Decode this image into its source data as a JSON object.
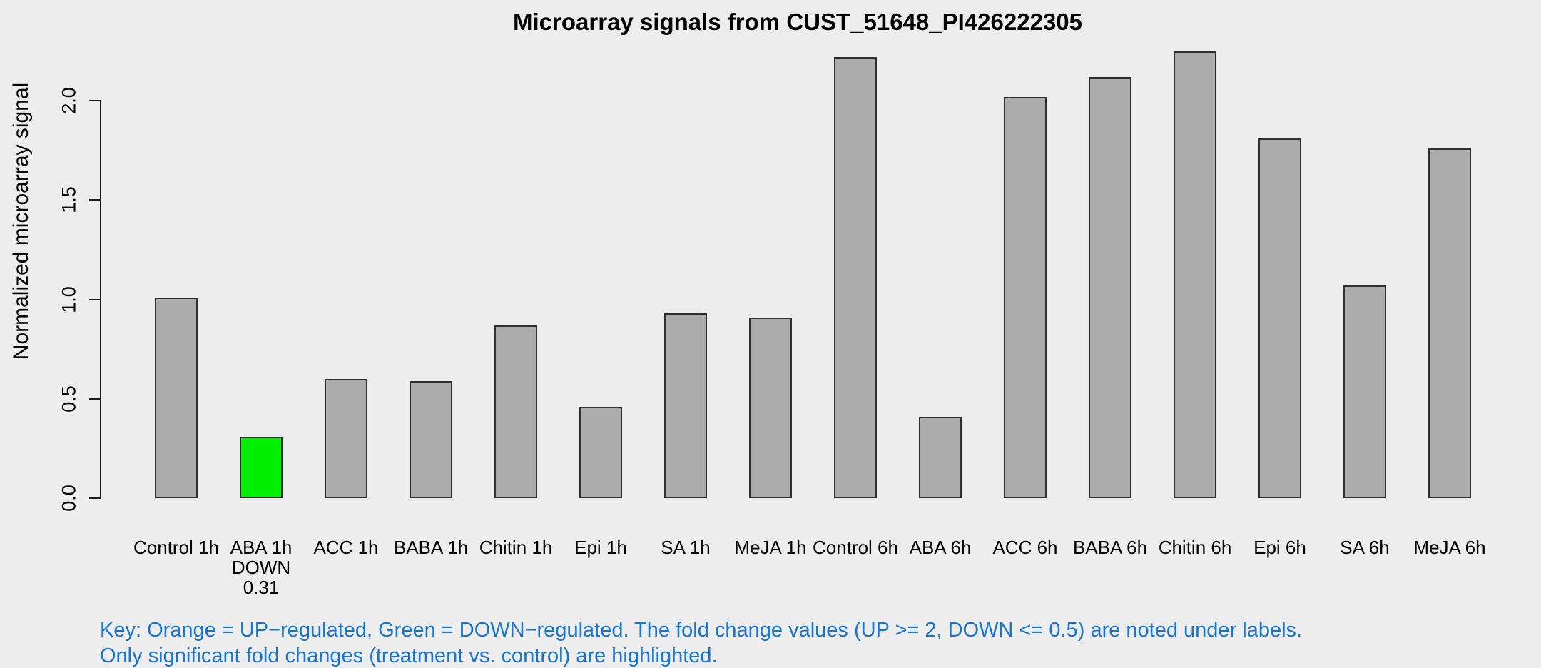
{
  "chart_data": {
    "type": "bar",
    "title": "Microarray signals from CUST_51648_PI426222305",
    "ylabel": "Normalized microarray signal",
    "xlabel": "",
    "ylim": [
      0,
      2.3
    ],
    "yticks": [
      0.0,
      0.5,
      1.0,
      1.5,
      2.0
    ],
    "grid": false,
    "legend": "none",
    "categories": [
      "Control 1h",
      "ABA 1h",
      "ACC 1h",
      "BABA 1h",
      "Chitin 1h",
      "Epi 1h",
      "SA 1h",
      "MeJA 1h",
      "Control 6h",
      "ABA 6h",
      "ACC 6h",
      "BABA 6h",
      "Chitin 6h",
      "Epi 6h",
      "SA 6h",
      "MeJA 6h"
    ],
    "values": [
      1.01,
      0.31,
      0.6,
      0.59,
      0.87,
      0.46,
      0.93,
      0.91,
      2.22,
      0.41,
      2.02,
      2.12,
      2.25,
      1.81,
      1.07,
      1.76
    ],
    "bars": [
      {
        "label": "Control 1h",
        "value": 1.01,
        "regulation": null,
        "sublabels": []
      },
      {
        "label": "ABA 1h",
        "value": 0.31,
        "regulation": "DOWN",
        "fold_change": "0.31",
        "sublabels": [
          "DOWN",
          "0.31"
        ]
      },
      {
        "label": "ACC 1h",
        "value": 0.6,
        "regulation": null,
        "sublabels": []
      },
      {
        "label": "BABA 1h",
        "value": 0.59,
        "regulation": null,
        "sublabels": []
      },
      {
        "label": "Chitin 1h",
        "value": 0.87,
        "regulation": null,
        "sublabels": []
      },
      {
        "label": "Epi 1h",
        "value": 0.46,
        "regulation": null,
        "sublabels": []
      },
      {
        "label": "SA 1h",
        "value": 0.93,
        "regulation": null,
        "sublabels": []
      },
      {
        "label": "MeJA 1h",
        "value": 0.91,
        "regulation": null,
        "sublabels": []
      },
      {
        "label": "Control 6h",
        "value": 2.22,
        "regulation": null,
        "sublabels": []
      },
      {
        "label": "ABA 6h",
        "value": 0.41,
        "regulation": null,
        "sublabels": []
      },
      {
        "label": "ACC 6h",
        "value": 2.02,
        "regulation": null,
        "sublabels": []
      },
      {
        "label": "BABA 6h",
        "value": 2.12,
        "regulation": null,
        "sublabels": []
      },
      {
        "label": "Chitin 6h",
        "value": 2.25,
        "regulation": null,
        "sublabels": []
      },
      {
        "label": "Epi 6h",
        "value": 1.81,
        "regulation": null,
        "sublabels": []
      },
      {
        "label": "SA 6h",
        "value": 1.07,
        "regulation": null,
        "sublabels": []
      },
      {
        "label": "MeJA 6h",
        "value": 1.76,
        "regulation": null,
        "sublabels": []
      }
    ]
  },
  "key": {
    "line1": "Key: Orange = UP−regulated, Green = DOWN−regulated. The fold change values (UP >= 2, DOWN <= 0.5) are noted under labels.",
    "line2": "Only significant fold changes (treatment vs. control) are highlighted."
  },
  "colors": {
    "background": "#EDEDED",
    "bar_fill": "#ACACAC",
    "bar_border": "#2E2E2E",
    "up_highlight": "#FFA500",
    "down_highlight": "#00EE00",
    "key_text": "#1874CD",
    "axis_text": "#000000"
  }
}
